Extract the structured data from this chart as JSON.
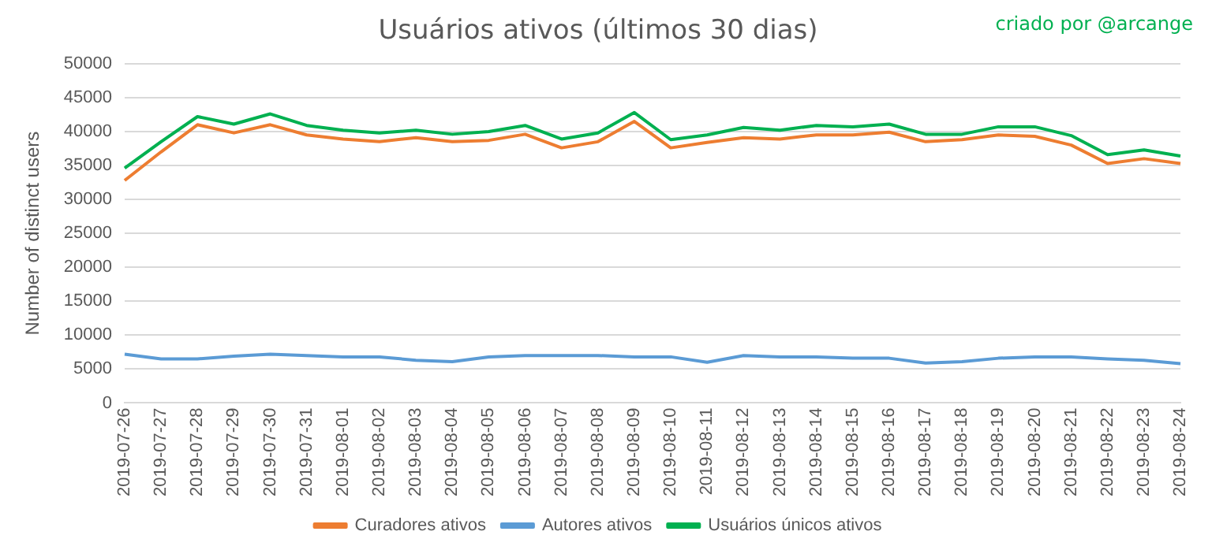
{
  "chart_data": {
    "type": "line",
    "title": "Usuários ativos (últimos 30 dias)",
    "ylabel": "Number of distinct users",
    "annotations": [
      "criado por @arcange"
    ],
    "categories": [
      "2019-07-26",
      "2019-07-27",
      "2019-07-28",
      "2019-07-29",
      "2019-07-30",
      "2019-07-31",
      "2019-08-01",
      "2019-08-02",
      "2019-08-03",
      "2019-08-04",
      "2019-08-05",
      "2019-08-06",
      "2019-08-07",
      "2019-08-08",
      "2019-08-09",
      "2019-08-10",
      "2019-08-11",
      "2019-08-12",
      "2019-08-13",
      "2019-08-14",
      "2019-08-15",
      "2019-08-16",
      "2019-08-17",
      "2019-08-18",
      "2019-08-19",
      "2019-08-20",
      "2019-08-21",
      "2019-08-22",
      "2019-08-23",
      "2019-08-24"
    ],
    "series": [
      {
        "name": "Curadores ativos",
        "color": "#ed7d31",
        "values": [
          32800,
          37000,
          41000,
          39800,
          41000,
          39500,
          38900,
          38500,
          39100,
          38500,
          38700,
          39600,
          37600,
          38500,
          41500,
          37600,
          38400,
          39100,
          38900,
          39500,
          39500,
          39900,
          38500,
          38800,
          39500,
          39300,
          38000,
          35300,
          36000,
          35300
        ]
      },
      {
        "name": "Autores ativos",
        "color": "#5b9bd5",
        "values": [
          7200,
          6500,
          6500,
          6900,
          7200,
          7000,
          6800,
          6800,
          6300,
          6100,
          6800,
          7000,
          7000,
          7000,
          6800,
          6800,
          6000,
          7000,
          6800,
          6800,
          6600,
          6600,
          5900,
          6100,
          6600,
          6800,
          6800,
          6500,
          6300,
          5800
        ]
      },
      {
        "name": "Usuários únicos ativos",
        "color": "#00b050",
        "values": [
          34600,
          38500,
          42200,
          41100,
          42600,
          40900,
          40200,
          39800,
          40200,
          39600,
          40000,
          40900,
          38900,
          39800,
          42800,
          38800,
          39500,
          40600,
          40200,
          40900,
          40700,
          41100,
          39600,
          39600,
          40700,
          40700,
          39400,
          36600,
          37300,
          36400
        ]
      }
    ],
    "ylim": [
      0,
      50000
    ],
    "yticks": [
      0,
      5000,
      10000,
      15000,
      20000,
      25000,
      30000,
      35000,
      40000,
      45000,
      50000
    ],
    "grid": "y",
    "legend": "bottom",
    "marker": "none",
    "line_style": "solid"
  }
}
